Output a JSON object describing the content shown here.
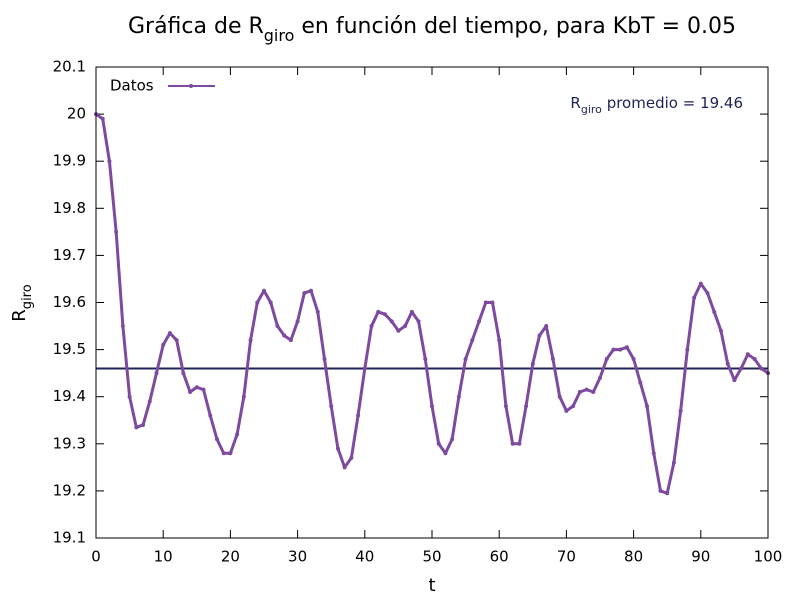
{
  "chart_data": {
    "type": "line",
    "title": [
      "Gráfica de R",
      "giro",
      " en función del tiempo, para KbT = 0.05"
    ],
    "xlabel": "t",
    "ylabel": [
      "R",
      "giro"
    ],
    "annotation": {
      "text": [
        "R",
        "giro",
        " promedio = "
      ],
      "value": 19.46,
      "color": "#1f2357"
    },
    "legend": "top-left",
    "x": [
      0,
      1,
      2,
      3,
      4,
      5,
      6,
      7,
      8,
      9,
      10,
      11,
      12,
      13,
      14,
      15,
      16,
      17,
      18,
      19,
      20,
      21,
      22,
      23,
      24,
      25,
      26,
      27,
      28,
      29,
      30,
      31,
      32,
      33,
      34,
      35,
      36,
      37,
      38,
      39,
      40,
      41,
      42,
      43,
      44,
      45,
      46,
      47,
      48,
      49,
      50,
      51,
      52,
      53,
      54,
      55,
      56,
      57,
      58,
      59,
      60,
      61,
      62,
      63,
      64,
      65,
      66,
      67,
      68,
      69,
      70,
      71,
      72,
      73,
      74,
      75,
      76,
      77,
      78,
      79,
      80,
      81,
      82,
      83,
      84,
      85,
      86,
      87,
      88,
      89,
      90,
      91,
      92,
      93,
      94,
      95,
      96,
      97,
      98,
      99,
      100
    ],
    "series": [
      {
        "name": "Datos",
        "color": "#7d4a9f",
        "values": [
          20.0,
          19.99,
          19.9,
          19.75,
          19.55,
          19.4,
          19.335,
          19.34,
          19.39,
          19.45,
          19.51,
          19.535,
          19.52,
          19.45,
          19.41,
          19.42,
          19.415,
          19.36,
          19.31,
          19.28,
          19.28,
          19.32,
          19.4,
          19.52,
          19.6,
          19.625,
          19.6,
          19.55,
          19.53,
          19.52,
          19.56,
          19.62,
          19.625,
          19.58,
          19.48,
          19.38,
          19.29,
          19.25,
          19.27,
          19.36,
          19.46,
          19.55,
          19.58,
          19.575,
          19.56,
          19.54,
          19.55,
          19.58,
          19.56,
          19.48,
          19.38,
          19.3,
          19.28,
          19.31,
          19.4,
          19.48,
          19.52,
          19.56,
          19.6,
          19.6,
          19.52,
          19.38,
          19.3,
          19.3,
          19.38,
          19.47,
          19.53,
          19.55,
          19.48,
          19.4,
          19.37,
          19.38,
          19.41,
          19.415,
          19.41,
          19.44,
          19.48,
          19.5,
          19.5,
          19.505,
          19.48,
          19.43,
          19.38,
          19.28,
          19.2,
          19.195,
          19.26,
          19.37,
          19.5,
          19.61,
          19.64,
          19.62,
          19.58,
          19.54,
          19.47,
          19.435,
          19.46,
          19.49,
          19.48,
          19.46,
          19.45
        ]
      }
    ],
    "xlim": [
      0,
      100
    ],
    "xticks": [
      0,
      10,
      20,
      30,
      40,
      50,
      60,
      70,
      80,
      90,
      100
    ],
    "ylim": [
      19.1,
      20.1
    ],
    "yticks": [
      19.1,
      19.2,
      19.3,
      19.4,
      19.5,
      19.6,
      19.7,
      19.8,
      19.9,
      20,
      20.1
    ]
  }
}
